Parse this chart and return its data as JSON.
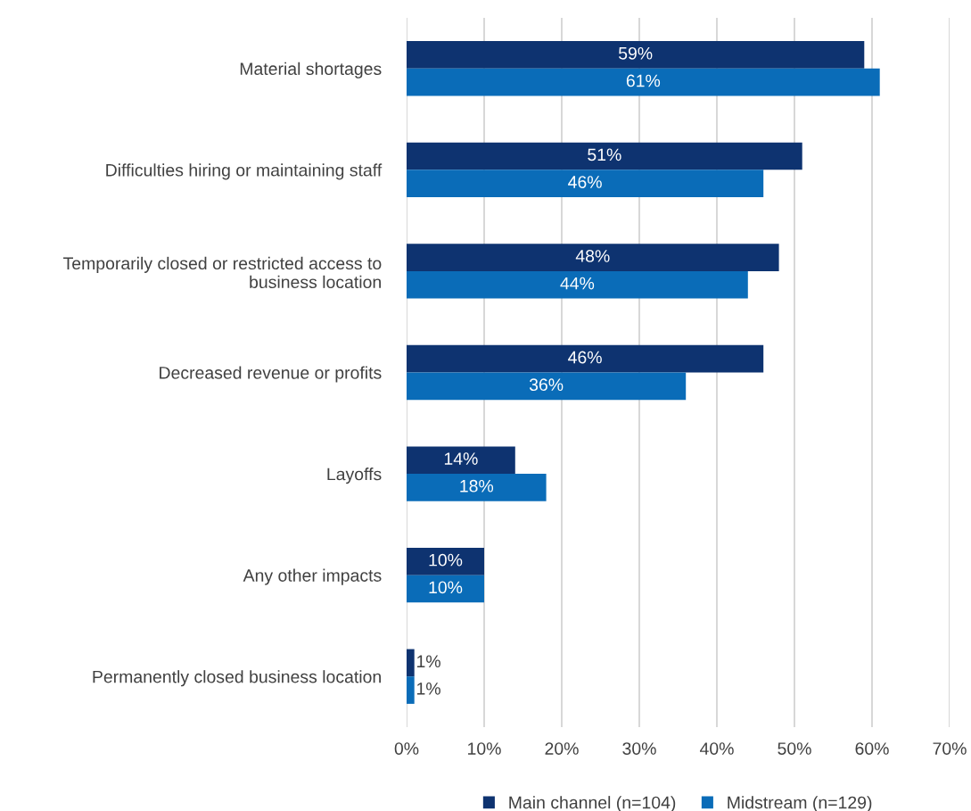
{
  "chart_data": {
    "type": "bar",
    "orientation": "horizontal",
    "categories": [
      "Material shortages",
      "Difficulties hiring or maintaining staff",
      "Temporarily closed or restricted access to business location",
      "Decreased revenue or profits",
      "Layoffs",
      "Any other impacts",
      "Permanently closed business location"
    ],
    "series": [
      {
        "name": "Main channel (n=104)",
        "color": "#0e3370",
        "values": [
          59,
          51,
          48,
          46,
          14,
          10,
          1
        ],
        "value_labels": [
          "59%",
          "51%",
          "48%",
          "46%",
          "14%",
          "10%",
          "1%"
        ]
      },
      {
        "name": "Midstream (n=129)",
        "color": "#0a6cb8",
        "values": [
          61,
          46,
          44,
          36,
          18,
          10,
          1
        ],
        "value_labels": [
          "61%",
          "46%",
          "44%",
          "36%",
          "18%",
          "10%",
          "1%"
        ]
      }
    ],
    "xlim": [
      0,
      70
    ],
    "xticks": [
      {
        "value": 0,
        "label": "0%"
      },
      {
        "value": 10,
        "label": "10%"
      },
      {
        "value": 20,
        "label": "20%"
      },
      {
        "value": 30,
        "label": "30%"
      },
      {
        "value": 40,
        "label": "40%"
      },
      {
        "value": 50,
        "label": "50%"
      },
      {
        "value": 60,
        "label": "60%"
      },
      {
        "value": 70,
        "label": "70%"
      }
    ],
    "grid": "x",
    "legend": "bottom"
  }
}
